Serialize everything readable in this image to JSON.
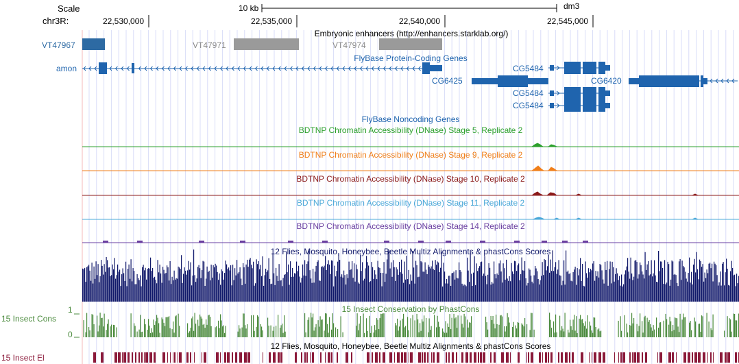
{
  "header": {
    "scale_label": "Scale",
    "scale_bar_text": "10 kb",
    "assembly": "dm3",
    "chrom_label": "chr3R:",
    "positions": [
      "22,530,000",
      "22,535,000",
      "22,540,000",
      "22,545,000"
    ]
  },
  "tracks": {
    "enhancers": {
      "title": "Embryonic enhancers (http://enhancers.starklab.org/)",
      "items": [
        "VT47967",
        "VT47971",
        "VT47974"
      ]
    },
    "flybase_coding": {
      "title": "FlyBase Protein-Coding Genes",
      "left_label": "amon",
      "genes": [
        "CG5484",
        "CG6425",
        "CG6420",
        "CG5484",
        "CG5484"
      ]
    },
    "flybase_noncoding": {
      "title": "FlyBase Noncoding Genes"
    },
    "dnase": [
      {
        "title": "BDTNP Chromatin Accessibility (DNase) Stage 5, Replicate 2",
        "color": "#2ca02c"
      },
      {
        "title": "BDTNP Chromatin Accessibility (DNase) Stage 9, Replicate 2",
        "color": "#f07f1a"
      },
      {
        "title": "BDTNP Chromatin Accessibility (DNase) Stage 10, Replicate 2",
        "color": "#8b1a1a"
      },
      {
        "title": "BDTNP Chromatin Accessibility (DNase) Stage 11, Replicate 2",
        "color": "#4aa8d8"
      },
      {
        "title": "BDTNP Chromatin Accessibility (DNase) Stage 14, Replicate 2",
        "color": "#6a3fa0"
      }
    ],
    "multiz": {
      "title": "12 Flies, Mosquito, Honeybee, Beetle Multiz Alignments & phastCons Scores",
      "color": "#10186a"
    },
    "phastcons": {
      "title": "15 Insect Conservation by PhastCons",
      "left_label": "15 Insect Cons",
      "y_max": "1",
      "y_min": "0",
      "color": "#4a8a3c"
    },
    "elements": {
      "title": "12 Flies, Mosquito, Honeybee, Beetle Multiz Alignments & phastCons Scores",
      "left_label": "15 Insect El",
      "color": "#8b1a3a"
    }
  },
  "colors": {
    "gene_blue": "#1f64ae",
    "enhancer_gray": "#9a9a9a",
    "enhancer_blue": "#2d6aa3",
    "guide_blue": "#d8dcf8",
    "guide_red": "#f4b8b8"
  }
}
